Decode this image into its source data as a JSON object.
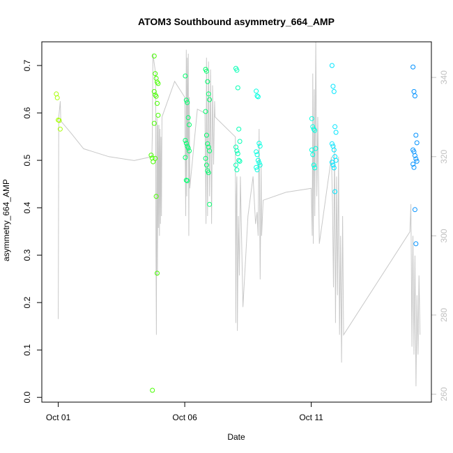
{
  "chart_data": {
    "type": "scatter",
    "title": "ATOM3 Southbound asymmetry_664_AMP",
    "xlabel": "Date",
    "ylabel": "asymmetry_664_AMP",
    "x_ticks": [
      {
        "label": "Oct 01",
        "day": 0
      },
      {
        "label": "Oct 06",
        "day": 5
      },
      {
        "label": "Oct 11",
        "day": 10
      }
    ],
    "xlim_days": [
      -0.65,
      14.75
    ],
    "ylim": [
      -0.01,
      0.75
    ],
    "y_ticks": [
      0.0,
      0.1,
      0.2,
      0.3,
      0.4,
      0.5,
      0.6,
      0.7
    ],
    "y2lim": [
      258,
      349
    ],
    "y2_ticks": [
      260,
      280,
      300,
      320,
      340
    ],
    "grid": false,
    "colors": {
      "secondary_line": "#c8c8c8",
      "right_axis": "#c0c0c0",
      "palette": [
        "#a6ff00",
        "#47ff00",
        "#00ff6e",
        "#00ffb4",
        "#00ffe0",
        "#00e5ff",
        "#0091ff"
      ]
    },
    "points": [
      {
        "day": 0.0,
        "values": [
          0.64,
          0.632,
          0.585,
          0.584,
          0.566
        ],
        "color_index": 0
      },
      {
        "day": 3.75,
        "values": [
          0.511,
          0.505,
          0.497
        ],
        "color_index": 1
      },
      {
        "day": 3.8,
        "values": [
          0.015
        ],
        "color_index": 1
      },
      {
        "day": 3.87,
        "values": [
          0.72,
          0.683,
          0.673,
          0.665,
          0.662,
          0.645,
          0.638,
          0.635,
          0.62,
          0.595,
          0.578,
          0.504,
          0.424,
          0.262
        ],
        "color_index": 1
      },
      {
        "day": 5.1,
        "values": [
          0.678,
          0.627,
          0.622,
          0.59,
          0.575,
          0.542,
          0.536,
          0.53,
          0.526,
          0.52,
          0.506,
          0.458,
          0.457
        ],
        "color_index": 2
      },
      {
        "day": 5.9,
        "values": [
          0.692,
          0.688,
          0.666,
          0.64,
          0.628,
          0.603,
          0.553,
          0.535,
          0.528,
          0.52,
          0.504,
          0.49,
          0.478,
          0.474,
          0.407
        ],
        "color_index": 2
      },
      {
        "day": 7.1,
        "values": [
          0.694,
          0.69,
          0.653,
          0.566,
          0.54,
          0.528,
          0.52,
          0.514,
          0.5,
          0.498,
          0.49,
          0.48
        ],
        "color_index": 3
      },
      {
        "day": 7.9,
        "values": [
          0.646,
          0.636,
          0.634,
          0.536,
          0.53,
          0.518,
          0.512,
          0.5,
          0.495,
          0.49,
          0.485,
          0.48
        ],
        "color_index": 4
      },
      {
        "day": 10.1,
        "values": [
          0.588,
          0.571,
          0.566,
          0.563,
          0.525,
          0.522,
          0.512,
          0.49,
          0.484
        ],
        "color_index": 4
      },
      {
        "day": 10.9,
        "values": [
          0.7,
          0.656,
          0.645,
          0.571,
          0.559,
          0.535,
          0.53,
          0.522,
          0.508,
          0.5,
          0.496,
          0.49,
          0.484,
          0.434
        ],
        "color_index": 5
      },
      {
        "day": 14.1,
        "values": [
          0.697,
          0.645,
          0.636,
          0.553,
          0.537,
          0.522,
          0.518,
          0.51,
          0.503,
          0.498,
          0.492,
          0.485,
          0.396,
          0.324
        ],
        "color_index": 6
      }
    ],
    "secondary_series": {
      "axis": "right",
      "path": [
        [
          0.0,
          279
        ],
        [
          0.02,
          330
        ],
        [
          0.08,
          334
        ],
        [
          0.1,
          329
        ],
        [
          0.5,
          326
        ],
        [
          1.0,
          322
        ],
        [
          2.0,
          320
        ],
        [
          3.0,
          319
        ],
        [
          3.7,
          320
        ],
        [
          3.72,
          326
        ],
        [
          3.74,
          346
        ],
        [
          3.85,
          341
        ],
        [
          3.86,
          298
        ],
        [
          3.88,
          275
        ],
        [
          3.9,
          330
        ],
        [
          3.92,
          290
        ],
        [
          3.94,
          328
        ],
        [
          3.96,
          302
        ],
        [
          3.98,
          328
        ],
        [
          4.0,
          300
        ],
        [
          4.02,
          327
        ],
        [
          4.04,
          303
        ],
        [
          4.06,
          325
        ],
        [
          4.08,
          305
        ],
        [
          4.1,
          330
        ],
        [
          4.6,
          339
        ],
        [
          5.0,
          335
        ],
        [
          5.04,
          305
        ],
        [
          5.06,
          347
        ],
        [
          5.08,
          310
        ],
        [
          5.1,
          345
        ],
        [
          5.12,
          320
        ],
        [
          5.14,
          346
        ],
        [
          5.16,
          300
        ],
        [
          5.18,
          335
        ],
        [
          5.2,
          312
        ],
        [
          5.5,
          332
        ],
        [
          5.8,
          331
        ],
        [
          5.84,
          303
        ],
        [
          5.86,
          345
        ],
        [
          5.9,
          305
        ],
        [
          5.94,
          344
        ],
        [
          5.98,
          310
        ],
        [
          6.02,
          342
        ],
        [
          6.06,
          303
        ],
        [
          6.1,
          338
        ],
        [
          6.14,
          318
        ],
        [
          6.18,
          334
        ],
        [
          6.2,
          330
        ],
        [
          7.0,
          325
        ],
        [
          7.02,
          278
        ],
        [
          7.04,
          310
        ],
        [
          7.06,
          315
        ],
        [
          7.08,
          276
        ],
        [
          7.12,
          305
        ],
        [
          7.16,
          290
        ],
        [
          7.2,
          315
        ],
        [
          7.3,
          282
        ],
        [
          7.5,
          305
        ],
        [
          7.7,
          315
        ],
        [
          7.8,
          303
        ],
        [
          7.86,
          306
        ],
        [
          7.9,
          300
        ],
        [
          7.94,
          327
        ],
        [
          7.98,
          289
        ],
        [
          8.02,
          318
        ],
        [
          8.04,
          300
        ],
        [
          8.1,
          309
        ],
        [
          9.0,
          311
        ],
        [
          10.0,
          312
        ],
        [
          10.04,
          300
        ],
        [
          10.06,
          341
        ],
        [
          10.08,
          298
        ],
        [
          10.12,
          337
        ],
        [
          10.14,
          305
        ],
        [
          10.18,
          349
        ],
        [
          10.22,
          310
        ],
        [
          10.26,
          330
        ],
        [
          10.32,
          298
        ],
        [
          10.8,
          320
        ],
        [
          10.84,
          308
        ],
        [
          10.88,
          287
        ],
        [
          10.92,
          323
        ],
        [
          10.96,
          278
        ],
        [
          11.0,
          315
        ],
        [
          11.04,
          285
        ],
        [
          11.08,
          320
        ],
        [
          11.12,
          275
        ],
        [
          11.16,
          300
        ],
        [
          11.2,
          268
        ],
        [
          11.24,
          305
        ],
        [
          11.28,
          275
        ],
        [
          13.9,
          301
        ],
        [
          13.94,
          308
        ],
        [
          13.98,
          272
        ],
        [
          14.02,
          300
        ],
        [
          14.06,
          270
        ],
        [
          14.1,
          295
        ],
        [
          14.14,
          262
        ],
        [
          14.18,
          285
        ],
        [
          14.22,
          270
        ],
        [
          14.26,
          290
        ],
        [
          14.3,
          275
        ]
      ]
    }
  }
}
